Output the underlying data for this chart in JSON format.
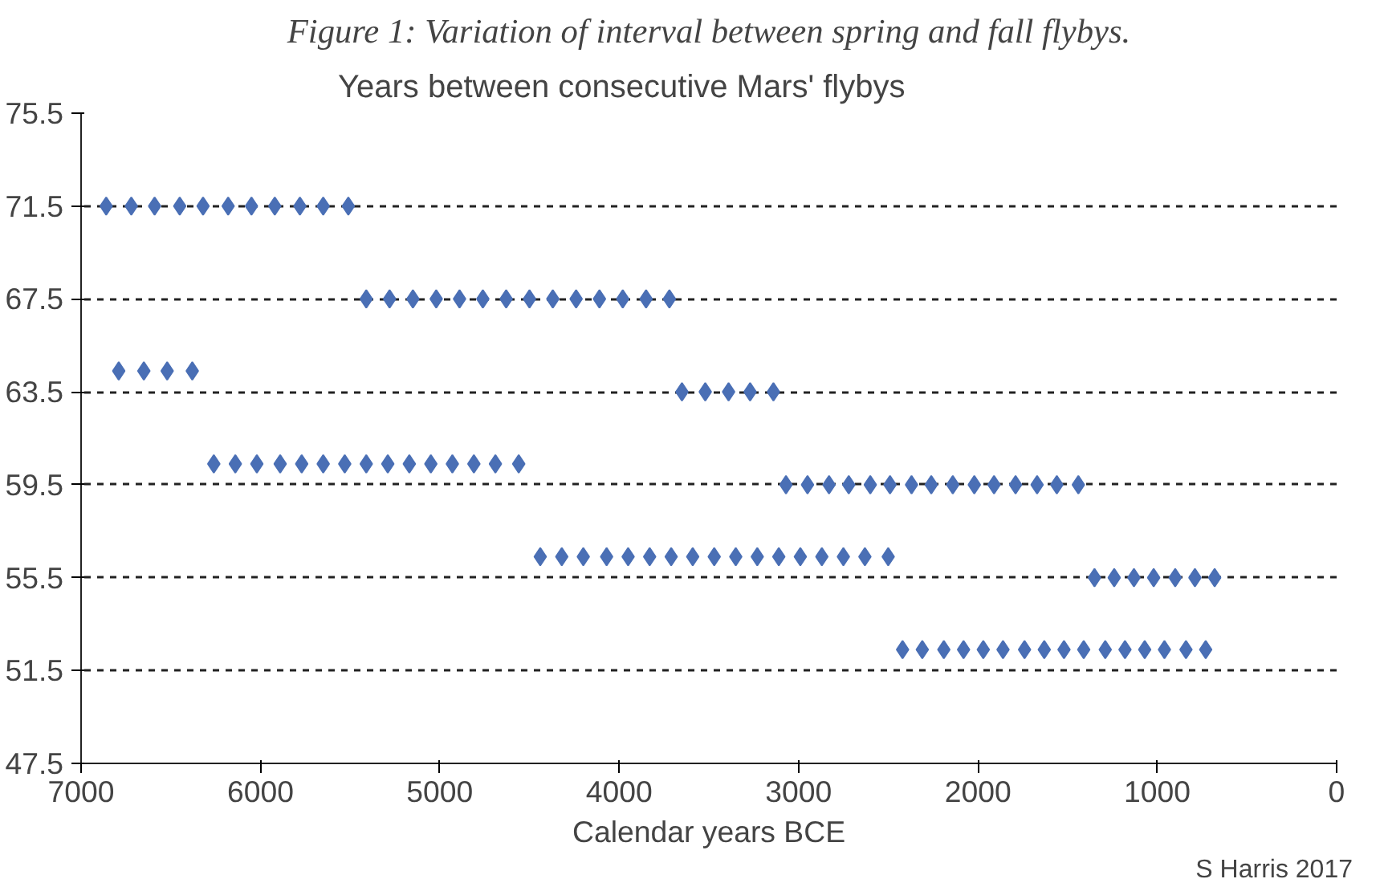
{
  "chart_data": {
    "type": "scatter",
    "title": "Years between consecutive Mars' flybys",
    "xlabel": "Calendar years BCE",
    "annotations": [
      "Figure 1: Variation of interval between spring and fall flybys.",
      "S Harris 2017"
    ],
    "series": [
      {
        "color": "#4a6fb5",
        "x": [
          6860,
          6720,
          6590,
          6450,
          6320,
          6180,
          6050,
          5920,
          5780,
          5650,
          5510,
          5410,
          5280,
          5150,
          5020,
          4890,
          4760,
          4630,
          4500,
          4370,
          4240,
          4110,
          3980,
          3850,
          3720,
          6790,
          6650,
          6520,
          6380,
          3650,
          3520,
          3390,
          3270,
          3140,
          6260,
          6140,
          6020,
          5890,
          5770,
          5650,
          5530,
          5410,
          5290,
          5170,
          5050,
          4930,
          4810,
          4690,
          4560,
          3070,
          2950,
          2830,
          2720,
          2600,
          2490,
          2370,
          2260,
          2140,
          2020,
          1910,
          1790,
          1670,
          1560,
          1440,
          4440,
          4320,
          4200,
          4070,
          3950,
          3830,
          3710,
          3590,
          3470,
          3350,
          3230,
          3110,
          2990,
          2870,
          2750,
          2630,
          2500,
          1350,
          1240,
          1130,
          1020,
          900,
          790,
          680,
          2420,
          2310,
          2190,
          2080,
          1970,
          1860,
          1740,
          1630,
          1520,
          1410,
          1290,
          1180,
          1070,
          960,
          840,
          730
        ],
        "values": [
          71.5,
          71.5,
          71.5,
          71.5,
          71.5,
          71.5,
          71.5,
          71.5,
          71.5,
          71.5,
          71.5,
          67.5,
          67.5,
          67.5,
          67.5,
          67.5,
          67.5,
          67.5,
          67.5,
          67.5,
          67.5,
          67.5,
          67.5,
          67.5,
          67.5,
          64.4,
          64.4,
          64.4,
          64.4,
          63.5,
          63.5,
          63.5,
          63.5,
          63.5,
          60.4,
          60.4,
          60.4,
          60.4,
          60.4,
          60.4,
          60.4,
          60.4,
          60.4,
          60.4,
          60.4,
          60.4,
          60.4,
          60.4,
          60.4,
          59.5,
          59.5,
          59.5,
          59.5,
          59.5,
          59.5,
          59.5,
          59.5,
          59.5,
          59.5,
          59.5,
          59.5,
          59.5,
          59.5,
          59.5,
          56.4,
          56.4,
          56.4,
          56.4,
          56.4,
          56.4,
          56.4,
          56.4,
          56.4,
          56.4,
          56.4,
          56.4,
          56.4,
          56.4,
          56.4,
          56.4,
          56.4,
          55.5,
          55.5,
          55.5,
          55.5,
          55.5,
          55.5,
          55.5,
          52.4,
          52.4,
          52.4,
          52.4,
          52.4,
          52.4,
          52.4,
          52.4,
          52.4,
          52.4,
          52.4,
          52.4,
          52.4,
          52.4,
          52.4,
          52.4
        ]
      }
    ],
    "xlim": [
      7000,
      0
    ],
    "xticks": [
      7000,
      6000,
      5000,
      4000,
      3000,
      2000,
      1000,
      0
    ],
    "ylim": [
      47.5,
      75.5
    ],
    "yticks": [
      47.5,
      51.5,
      55.5,
      59.5,
      63.5,
      67.5,
      71.5,
      75.5
    ],
    "grid": "y",
    "marker": "diamond"
  }
}
